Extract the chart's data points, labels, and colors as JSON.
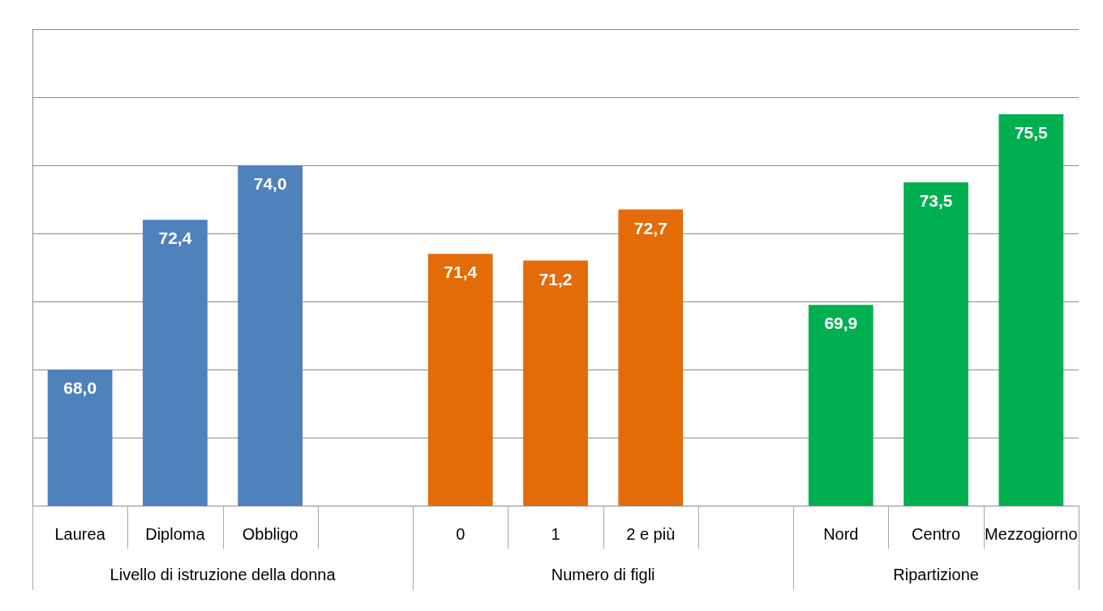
{
  "chart_data": {
    "type": "bar",
    "categories": [
      "Laurea",
      "Diploma",
      "Obbligo",
      null,
      "0",
      "1",
      "2 e più",
      null,
      "Nord",
      "Centro",
      "Mezzogiorno"
    ],
    "series": [
      {
        "name": "Livello di istruzione della donna",
        "color": "#4f81bd",
        "values": [
          68.0,
          72.4,
          74.0,
          null,
          null,
          null,
          null,
          null,
          null,
          null,
          null
        ],
        "value_labels": [
          "68,0",
          "72,4",
          "74,0",
          null,
          null,
          null,
          null,
          null,
          null,
          null,
          null
        ]
      },
      {
        "name": "Numero di figli",
        "color": "#e36c09",
        "values": [
          null,
          null,
          null,
          null,
          71.4,
          71.2,
          72.7,
          null,
          null,
          null,
          null
        ],
        "value_labels": [
          null,
          null,
          null,
          null,
          "71,4",
          "71,2",
          "72,7",
          null,
          null,
          null,
          null
        ]
      },
      {
        "name": "Ripartizione",
        "color": "#00b050",
        "values": [
          null,
          null,
          null,
          null,
          null,
          null,
          null,
          null,
          69.9,
          73.5,
          75.5
        ],
        "value_labels": [
          null,
          null,
          null,
          null,
          null,
          null,
          null,
          null,
          "69,9",
          "73,5",
          "75,5"
        ]
      }
    ],
    "ylim": [
      64,
      78
    ],
    "grid": "y",
    "tick_labels": "x",
    "legend": false
  }
}
